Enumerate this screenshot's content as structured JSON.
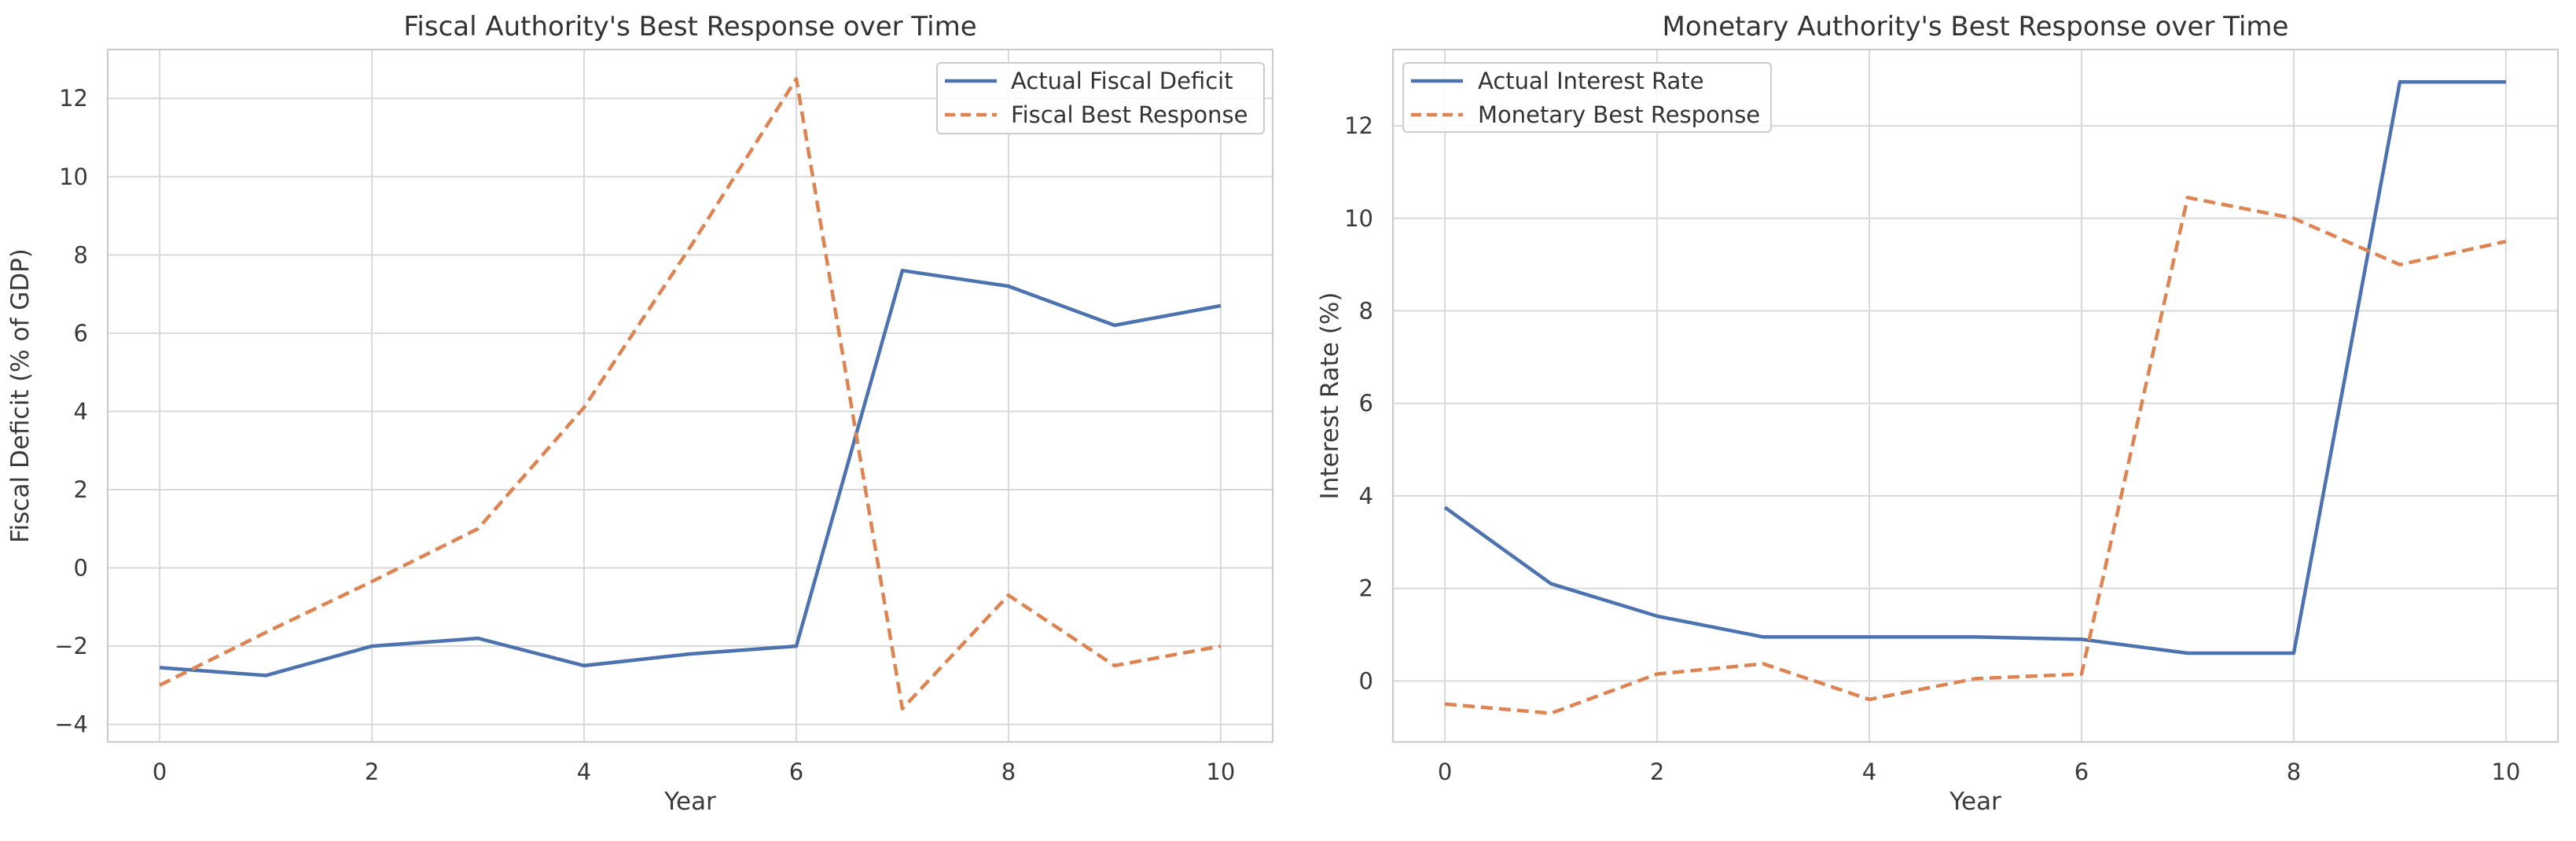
{
  "figure": {
    "background": "#ffffff",
    "grid_color": "#d9d9d9",
    "spine_color": "#cccccc",
    "text_color": "#333333",
    "tick_text_color": "#3a3a3a",
    "legend_border_color": "#cccccc",
    "legend_bg_color": "#ffffff"
  },
  "chart_data": [
    {
      "type": "line",
      "title": "Fiscal Authority's Best Response over Time",
      "xlabel": "Year",
      "ylabel": "Fiscal Deficit (% of GDP)",
      "grid": true,
      "legend_position": "upper right",
      "x": [
        0,
        1,
        2,
        3,
        4,
        5,
        6,
        7,
        8,
        9,
        10
      ],
      "xticks": [
        0,
        2,
        4,
        6,
        8,
        10
      ],
      "yticks": [
        -4,
        -2,
        0,
        2,
        4,
        6,
        8,
        10,
        12
      ],
      "xlim": [
        -0.49,
        10.49
      ],
      "ylim": [
        -4.45,
        13.25
      ],
      "series": [
        {
          "name": "Actual Fiscal Deficit",
          "color": "#4c72b0",
          "style": "solid",
          "values": [
            -2.55,
            -2.75,
            -2.0,
            -1.8,
            -2.5,
            -2.2,
            -2.0,
            7.6,
            7.2,
            6.2,
            6.7
          ]
        },
        {
          "name": "Fiscal Best Response",
          "color": "#dd8452",
          "style": "dashed",
          "values": [
            -3.0,
            -1.65,
            -0.35,
            1.0,
            4.1,
            8.2,
            12.5,
            -3.6,
            -0.7,
            -2.5,
            -2.0
          ]
        }
      ]
    },
    {
      "type": "line",
      "title": "Monetary Authority's Best Response over Time",
      "xlabel": "Year",
      "ylabel": "Interest Rate (%)",
      "grid": true,
      "legend_position": "upper left",
      "x": [
        0,
        1,
        2,
        3,
        4,
        5,
        6,
        7,
        8,
        9,
        10
      ],
      "xticks": [
        0,
        2,
        4,
        6,
        8,
        10
      ],
      "yticks": [
        0,
        2,
        4,
        6,
        8,
        10,
        12
      ],
      "xlim": [
        -0.49,
        10.49
      ],
      "ylim": [
        -1.32,
        13.65
      ],
      "series": [
        {
          "name": "Actual Interest Rate",
          "color": "#4c72b0",
          "style": "solid",
          "values": [
            3.75,
            2.1,
            1.4,
            0.95,
            0.95,
            0.95,
            0.9,
            0.6,
            0.6,
            12.95,
            12.95
          ]
        },
        {
          "name": "Monetary Best Response",
          "color": "#dd8452",
          "style": "dashed",
          "values": [
            -0.5,
            -0.7,
            0.15,
            0.37,
            -0.4,
            0.05,
            0.15,
            10.45,
            10.0,
            9.0,
            9.5
          ]
        }
      ]
    }
  ]
}
